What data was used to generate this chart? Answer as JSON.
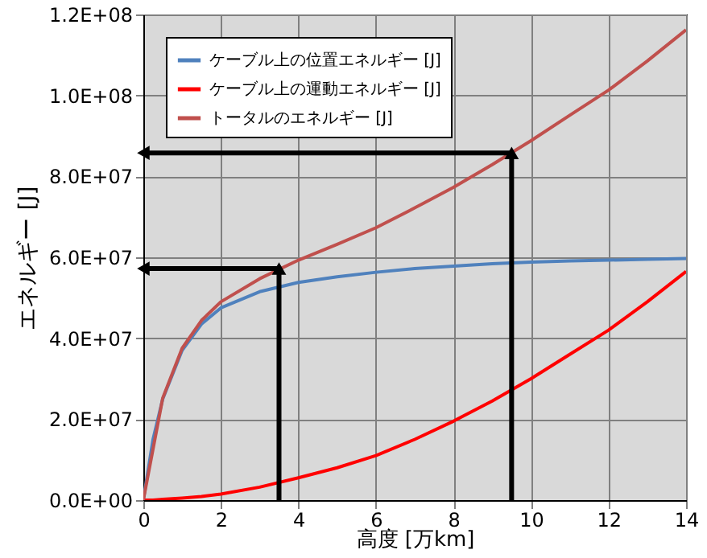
{
  "chart_data": {
    "type": "line",
    "xlabel": "高度 [万km]",
    "ylabel": "エネルギー [J]",
    "xlim": [
      0,
      14
    ],
    "xticks": [
      0,
      2,
      4,
      6,
      8,
      10,
      12,
      14
    ],
    "ylim": [
      0,
      120000000
    ],
    "yticks": [
      {
        "value": 0,
        "label": "0.0E+00"
      },
      {
        "value": 20000000,
        "label": "2.0E+07"
      },
      {
        "value": 40000000,
        "label": "4.0E+07"
      },
      {
        "value": 60000000,
        "label": "6.0E+07"
      },
      {
        "value": 80000000,
        "label": "8.0E+07"
      },
      {
        "value": 100000000,
        "label": "1.0E+08"
      },
      {
        "value": 120000000,
        "label": "1.2E+08"
      }
    ],
    "grid": true,
    "legend": "top left",
    "series": [
      {
        "name": "ケーブル上の位置エネルギー [J]",
        "color": "#4f81bd",
        "x": [
          0,
          0.25,
          0.5,
          1,
          1.5,
          2,
          3,
          4,
          5,
          6,
          7,
          8,
          9,
          10,
          11,
          12,
          13,
          14
        ],
        "values": [
          0,
          15000000,
          25000000,
          37000000,
          43500000,
          47500000,
          51500000,
          53800000,
          55200000,
          56300000,
          57200000,
          57800000,
          58400000,
          58800000,
          59100000,
          59300000,
          59500000,
          59700000
        ]
      },
      {
        "name": "ケーブル上の運動エネルギー [J]",
        "color": "#ff0000",
        "x": [
          0,
          0.25,
          0.5,
          1,
          1.5,
          2,
          3,
          4,
          5,
          6,
          7,
          8,
          9,
          10,
          11,
          12,
          13,
          14
        ],
        "values": [
          0,
          0,
          200000,
          500000,
          900000,
          1500000,
          3200000,
          5500000,
          8000000,
          11000000,
          15000000,
          19500000,
          24500000,
          30000000,
          36000000,
          42000000,
          49000000,
          56500000
        ]
      },
      {
        "name": "トータルのエネルギー [J]",
        "color": "#c0504d",
        "x": [
          0,
          0.5,
          1,
          1.5,
          2,
          3,
          4,
          5,
          6,
          7,
          8,
          9,
          10,
          11,
          12,
          13,
          14
        ],
        "values": [
          0,
          25200000,
          37500000,
          44400000,
          49000000,
          54700000,
          59300000,
          63200000,
          67300000,
          72200000,
          77300000,
          82900000,
          88800000,
          95100000,
          101300000,
          108500000,
          116200000
        ]
      },
      {
        "color": "#000000",
        "x": [
          3.5,
          3.5,
          0
        ],
        "values": [
          0,
          57200000,
          57200000
        ]
      },
      {
        "color": "#000000",
        "x": [
          9.5,
          9.5,
          0
        ],
        "values": [
          0,
          85800000,
          85800000
        ]
      }
    ]
  }
}
